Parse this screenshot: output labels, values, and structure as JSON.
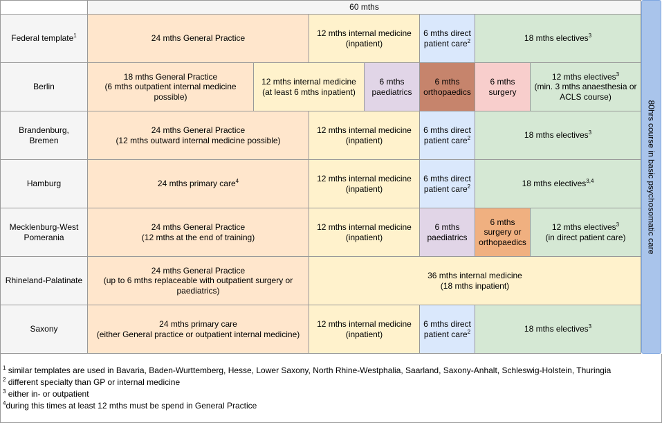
{
  "header": {
    "duration": "60 mths"
  },
  "side_label": "80hrs course in basic psychosomatic care",
  "rows": [
    {
      "state": "Federal template",
      "state_sup": "1",
      "gp": "24 mths General Practice",
      "im_1": "12 mths internal medicine",
      "im_2": "(inpatient)",
      "dpc_1": "6 mths direct",
      "dpc_2": "patient care",
      "dpc_sup": "2",
      "el": "18 mths electives",
      "el_sup": "3"
    },
    {
      "state": "Berlin",
      "gp_1": "18 mths General Practice",
      "gp_2": "(6 mths outpatient internal medicine",
      "gp_3": "possible)",
      "im_1": "12 mths internal medicine",
      "im_2": "(at least 6 mths inpatient)",
      "pae_1": "6 mths",
      "pae_2": "paediatrics",
      "ort_1": "6 mths",
      "ort_2": "orthopaedics",
      "sur_1": "6 mths",
      "sur_2": "surgery",
      "el_1": "12 mths electives",
      "el_sup": "3",
      "el_2": "(min. 3 mths anaesthesia or",
      "el_3": "ACLS course)"
    },
    {
      "state_1": "Brandenburg,",
      "state_2": "Bremen",
      "gp_1": "24 mths General Practice",
      "gp_2": "(12 mths outward internal medicine possible)",
      "im_1": "12 mths internal medicine",
      "im_2": "(inpatient)",
      "dpc_1": "6 mths direct",
      "dpc_2": "patient care",
      "dpc_sup": "2",
      "el": "18 mths electives",
      "el_sup": "3"
    },
    {
      "state": "Hamburg",
      "gp": "24 mths primary care",
      "gp_sup": "4",
      "im_1": "12 mths internal medicine",
      "im_2": "(inpatient)",
      "dpc_1": "6 mths direct",
      "dpc_2": "patient care",
      "dpc_sup": "2",
      "el": "18 mths electives",
      "el_sup": "3,4"
    },
    {
      "state_1": "Mecklenburg-West",
      "state_2": "Pomerania",
      "gp_1": "24 mths General Practice",
      "gp_2": "(12 mths at the end of training)",
      "im_1": "12 mths internal medicine",
      "im_2": "(inpatient)",
      "pae_1": "6 mths",
      "pae_2": "paediatrics",
      "so_1": "6 mths",
      "so_2": "surgery or",
      "so_3": "orthopaedics",
      "el_1": "12 mths electives",
      "el_sup": "3",
      "el_2": "(in direct patient care)"
    },
    {
      "state": "Rhineland-Palatinate",
      "gp_1": "24 mths General Practice",
      "gp_2": "(up to 6 mths replaceable with outpatient surgery or",
      "gp_3": "paediatrics)",
      "im_1": "36 mths internal medicine",
      "im_2": "(18 mths inpatient)"
    },
    {
      "state": "Saxony",
      "gp_1": "24 mths primary care",
      "gp_2": "(either General practice or outpatient internal medicine)",
      "im_1": "12 mths internal medicine",
      "im_2": "(inpatient)",
      "dpc_1": "6 mths direct",
      "dpc_2": "patient care",
      "dpc_sup": "2",
      "el": "18 mths electives",
      "el_sup": "3"
    }
  ],
  "footnotes": [
    {
      "mark": "1",
      "text": " similar templates are used in Bavaria, Baden-Wurttemberg, Hesse, Lower Saxony, North Rhine-Westphalia, Saarland, Saxony-Anhalt, Schleswig-Holstein, Thuringia"
    },
    {
      "mark": "2",
      "text": " different specialty than GP or internal medicine"
    },
    {
      "mark": "3",
      "text": " either in- or outpatient"
    },
    {
      "mark": "4",
      "text": "during this times at least 12 mths must be spend in General Practice"
    }
  ],
  "colors": {
    "general_practice": "#ffe6cc",
    "internal_medicine": "#fff2cc",
    "direct_patient_care": "#dae8fc",
    "electives": "#d5e8d4",
    "paediatrics": "#e1d5e7",
    "orthopaedics": "#c6846c",
    "surgery": "#f8cecc",
    "surgery_or_orthopaedics": "#f0b080",
    "side_bar": "#a9c4eb"
  }
}
